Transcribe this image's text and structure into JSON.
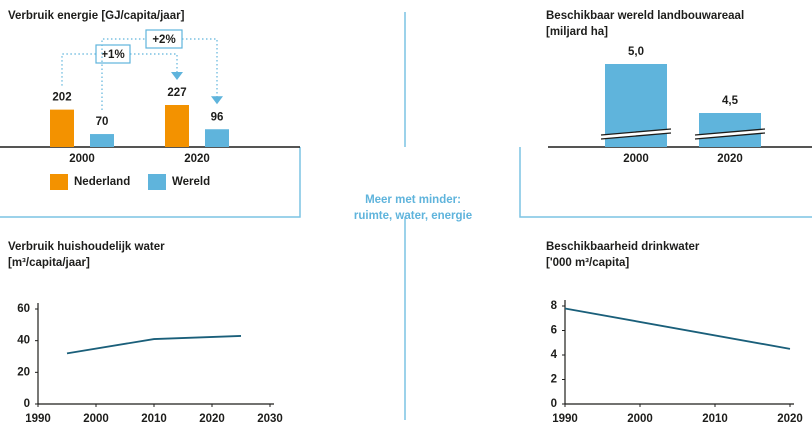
{
  "center_label": [
    "Meer met minder:",
    "ruimte, water, energie"
  ],
  "chart_data": [
    {
      "type": "bar",
      "title": "Verbruik energie [GJ/capita/jaar]",
      "categories": [
        "2000",
        "2020"
      ],
      "series": [
        {
          "name": "Nederland",
          "color": "#f39200",
          "values": [
            202,
            227
          ]
        },
        {
          "name": "Wereld",
          "color": "#5fb4dc",
          "values": [
            70,
            96
          ]
        }
      ],
      "annotations": [
        "+1%",
        "+2%"
      ]
    },
    {
      "type": "bar",
      "title": "Beschikbaar wereld landbouwareaal",
      "subtitle": "[miljard ha]",
      "categories": [
        "2000",
        "2020"
      ],
      "values": [
        5.0,
        4.5
      ],
      "value_labels": [
        "5,0",
        "4,5"
      ],
      "color": "#5fb4dc",
      "axis_break": true
    },
    {
      "type": "line",
      "title": "Verbruik huishoudelijk water",
      "subtitle": "[m³/capita/jaar]",
      "x": [
        1995,
        2010,
        2025
      ],
      "values": [
        32,
        41,
        43
      ],
      "color": "#1a5f7a",
      "xlim": [
        1990,
        2030
      ],
      "xticks": [
        1990,
        2000,
        2010,
        2020,
        2030
      ],
      "ylim": [
        0,
        60
      ],
      "yticks": [
        0,
        20,
        40,
        60
      ]
    },
    {
      "type": "line",
      "title": "Beschikbaarheid drinkwater",
      "subtitle": "['000 m³/capita]",
      "x": [
        1990,
        2020
      ],
      "values": [
        7.8,
        4.5
      ],
      "color": "#1a5f7a",
      "xlim": [
        1990,
        2020
      ],
      "xticks": [
        1990,
        2000,
        2010,
        2020
      ],
      "ylim": [
        0,
        8
      ],
      "yticks": [
        0,
        2,
        4,
        6,
        8
      ]
    }
  ]
}
